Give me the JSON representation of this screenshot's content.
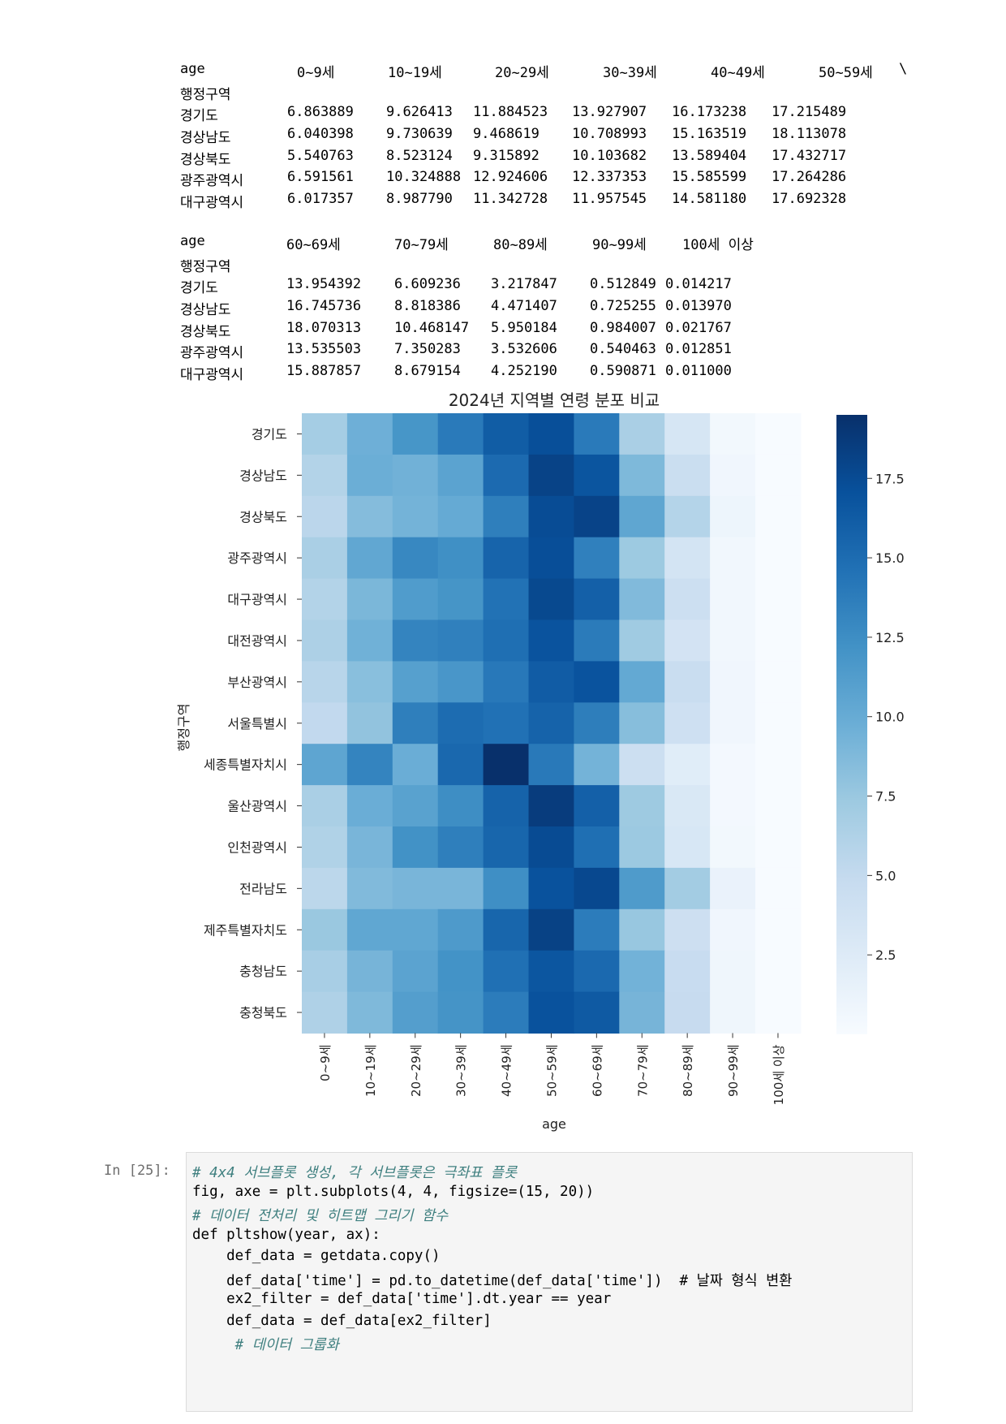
{
  "df_output": {
    "table1": {
      "columns_label": "age",
      "index_name": "행정구역",
      "columns": [
        "0~9세",
        "10~19세",
        "20~29세",
        "30~39세",
        "40~49세",
        "50~59세"
      ],
      "continuation": "\\",
      "rows": [
        {
          "region": "경기도",
          "values": [
            "6.863889",
            "9.626413",
            "11.884523",
            "13.927907",
            "16.173238",
            "17.215489"
          ]
        },
        {
          "region": "경상남도",
          "values": [
            "6.040398",
            "9.730639",
            "9.468619",
            "10.708993",
            "15.163519",
            "18.113078"
          ]
        },
        {
          "region": "경상북도",
          "values": [
            "5.540763",
            "8.523124",
            "9.315892",
            "10.103682",
            "13.589404",
            "17.432717"
          ]
        },
        {
          "region": "광주광역시",
          "values": [
            "6.591561",
            "10.324888",
            "12.924606",
            "12.337353",
            "15.585599",
            "17.264286"
          ]
        },
        {
          "region": "대구광역시",
          "values": [
            "6.017357",
            "8.987790",
            "11.342728",
            "11.957545",
            "14.581180",
            "17.692328"
          ]
        }
      ]
    },
    "table2": {
      "columns_label": "age",
      "index_name": "행정구역",
      "columns": [
        "60~69세",
        "70~79세",
        "80~89세",
        "90~99세",
        "100세 이상"
      ],
      "rows": [
        {
          "region": "경기도",
          "values": [
            "13.954392",
            "6.609236",
            "3.217847",
            "0.512849",
            "0.014217"
          ]
        },
        {
          "region": "경상남도",
          "values": [
            "16.745736",
            "8.818386",
            "4.471407",
            "0.725255",
            "0.013970"
          ]
        },
        {
          "region": "경상북도",
          "values": [
            "18.070313",
            "10.468147",
            "5.950184",
            "0.984007",
            "0.021767"
          ]
        },
        {
          "region": "광주광역시",
          "values": [
            "13.535503",
            "7.350283",
            "3.532606",
            "0.540463",
            "0.012851"
          ]
        },
        {
          "region": "대구광역시",
          "values": [
            "15.887857",
            "8.679154",
            "4.252190",
            "0.590871",
            "0.011000"
          ]
        }
      ]
    }
  },
  "chart_data": {
    "type": "heatmap",
    "title": "2024년 지역별 연령 분포 비교",
    "xlabel": "age",
    "ylabel": "행정구역",
    "colormap": "Blues",
    "color_range": [
      0,
      19.5
    ],
    "colorbar_ticks": [
      "2.5",
      "5.0",
      "7.5",
      "10.0",
      "12.5",
      "15.0",
      "17.5"
    ],
    "x_categories": [
      "0~9세",
      "10~19세",
      "20~29세",
      "30~39세",
      "40~49세",
      "50~59세",
      "60~69세",
      "70~79세",
      "80~89세",
      "90~99세",
      "100세 이상"
    ],
    "y_categories": [
      "경기도",
      "경상남도",
      "경상북도",
      "광주광역시",
      "대구광역시",
      "대전광역시",
      "부산광역시",
      "서울특별시",
      "세종특별자치시",
      "울산광역시",
      "인천광역시",
      "전라남도",
      "제주특별자치도",
      "충청남도",
      "충청북도"
    ],
    "values": [
      [
        6.86,
        9.63,
        11.88,
        13.93,
        16.17,
        17.22,
        13.95,
        6.61,
        3.22,
        0.51,
        0.01
      ],
      [
        6.04,
        9.73,
        9.47,
        10.71,
        15.16,
        18.11,
        16.75,
        8.82,
        4.47,
        0.73,
        0.01
      ],
      [
        5.54,
        8.52,
        9.32,
        10.1,
        13.59,
        17.43,
        18.07,
        10.47,
        5.95,
        0.98,
        0.02
      ],
      [
        6.59,
        10.32,
        12.92,
        12.34,
        15.59,
        17.26,
        13.54,
        7.35,
        3.53,
        0.54,
        0.01
      ],
      [
        6.02,
        8.99,
        11.34,
        11.96,
        14.58,
        17.69,
        15.89,
        8.68,
        4.25,
        0.59,
        0.01
      ],
      [
        6.4,
        9.5,
        13.2,
        13.5,
        14.8,
        16.9,
        13.9,
        7.2,
        3.6,
        0.6,
        0.01
      ],
      [
        5.7,
        8.3,
        11.0,
        11.8,
        14.1,
        16.2,
        16.9,
        10.2,
        4.6,
        0.7,
        0.01
      ],
      [
        5.1,
        7.9,
        13.6,
        15.0,
        14.6,
        15.7,
        13.7,
        8.4,
        4.1,
        0.7,
        0.02
      ],
      [
        10.5,
        13.2,
        9.8,
        15.3,
        19.5,
        14.0,
        9.3,
        4.3,
        2.2,
        0.4,
        0.01
      ],
      [
        6.6,
        9.8,
        10.8,
        12.5,
        15.7,
        18.6,
        15.9,
        7.3,
        2.9,
        0.4,
        0.01
      ],
      [
        6.2,
        9.1,
        12.2,
        13.6,
        15.5,
        17.5,
        14.8,
        7.4,
        3.1,
        0.5,
        0.01
      ],
      [
        5.5,
        8.7,
        9.1,
        9.1,
        12.4,
        17.0,
        17.7,
        11.4,
        7.0,
        1.3,
        0.02
      ],
      [
        7.5,
        10.4,
        10.4,
        11.5,
        15.5,
        18.2,
        13.8,
        7.6,
        4.2,
        0.7,
        0.02
      ],
      [
        6.7,
        9.2,
        10.7,
        12.1,
        14.7,
        16.7,
        15.2,
        9.4,
        4.7,
        0.8,
        0.02
      ],
      [
        6.3,
        8.8,
        11.1,
        12.0,
        13.8,
        17.0,
        16.4,
        9.2,
        4.8,
        0.8,
        0.02
      ]
    ]
  },
  "code_cell": {
    "prompt": "In [25]:",
    "lines": [
      "# 4x4 서브플롯 생성, 각 서브플롯은 극좌표 플롯",
      "fig, axe = plt.subplots(4, 4, figsize=(15, 20))",
      "# 데이터 전처리 및 히트맵 그리기 함수",
      "def pltshow(year, ax):",
      "    def_data = getdata.copy()",
      "    def_data['time'] = pd.to_datetime(def_data['time'])  # 날짜 형식 변환",
      "    ex2_filter = def_data['time'].dt.year == year",
      "    def_data = def_data[ex2_filter]",
      "     # 데이터 그룹화"
    ]
  }
}
